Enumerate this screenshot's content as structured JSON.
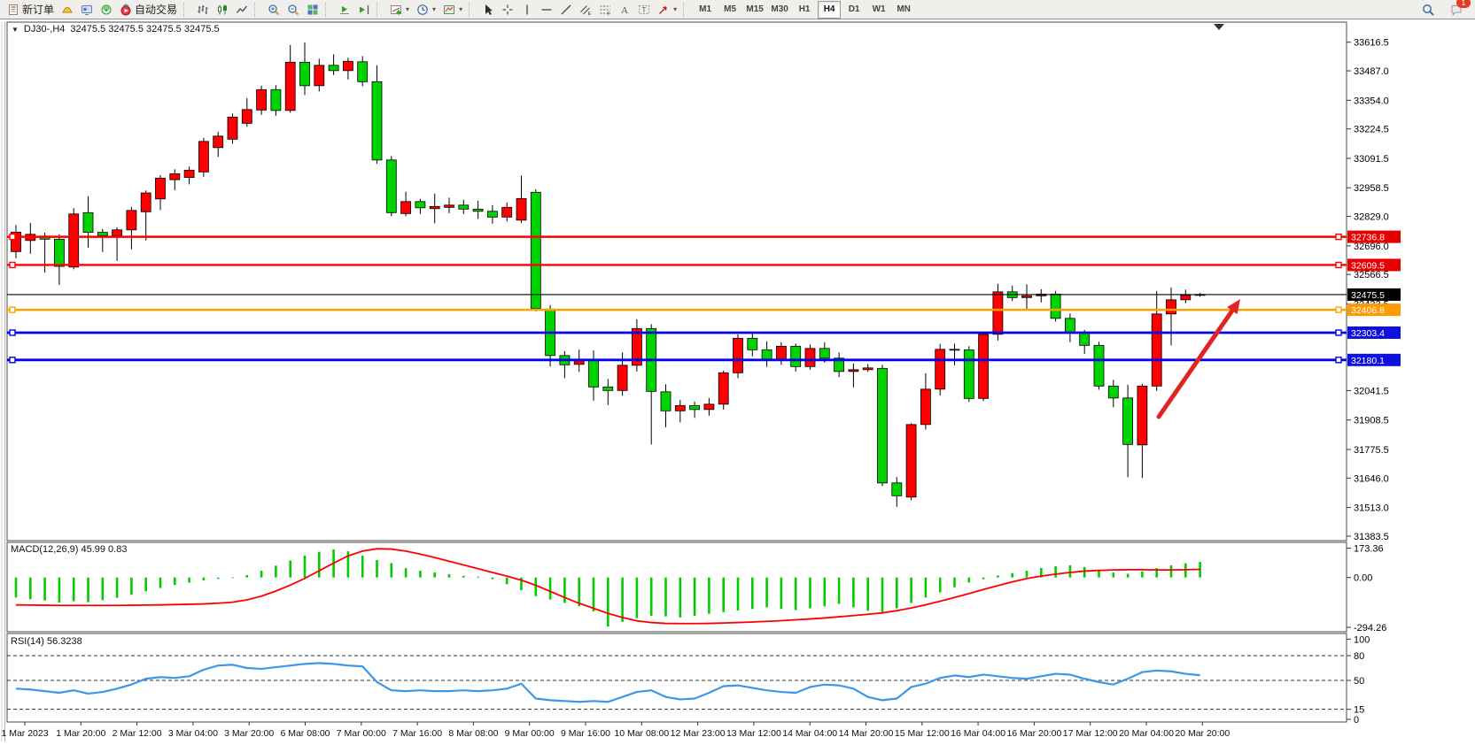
{
  "toolbar": {
    "items": [
      {
        "icon": "new-order-icon",
        "label": "新订单"
      },
      {
        "icon": "gold-icon"
      },
      {
        "icon": "market-watch-icon"
      },
      {
        "icon": "navigator-icon"
      },
      {
        "icon": "auto-trading-icon",
        "label": "自动交易"
      },
      {
        "sep": true
      },
      {
        "icon": "bar-chart-icon"
      },
      {
        "icon": "candlestick-icon"
      },
      {
        "icon": "line-chart-icon"
      },
      {
        "sep": true
      },
      {
        "icon": "zoom-in-icon"
      },
      {
        "icon": "zoom-out-icon"
      },
      {
        "icon": "tile-windows-icon"
      },
      {
        "sep": true
      },
      {
        "icon": "auto-scroll-icon"
      },
      {
        "icon": "chart-shift-icon"
      },
      {
        "sep": true
      },
      {
        "icon": "indicators-icon",
        "dropdown": true
      },
      {
        "icon": "period-icon",
        "dropdown": true
      },
      {
        "icon": "template-icon",
        "dropdown": true
      },
      {
        "sep": true
      },
      {
        "icon": "cursor-icon"
      },
      {
        "icon": "crosshair-icon"
      },
      {
        "icon": "vertical-line-icon"
      },
      {
        "icon": "horizontal-line-icon"
      },
      {
        "icon": "trendline-icon"
      },
      {
        "icon": "channel-icon"
      },
      {
        "icon": "fibonacci-icon"
      },
      {
        "icon": "text-icon"
      },
      {
        "icon": "text-label-icon"
      },
      {
        "icon": "shapes-icon",
        "dropdown": true
      },
      {
        "sep": true
      }
    ],
    "timeframes": [
      {
        "label": "M1"
      },
      {
        "label": "M5"
      },
      {
        "label": "M15"
      },
      {
        "label": "M30"
      },
      {
        "label": "H1"
      },
      {
        "label": "H4"
      },
      {
        "label": "D1"
      },
      {
        "label": "W1"
      },
      {
        "label": "MN"
      }
    ],
    "active_timeframe": "H4",
    "notification_badge": "1"
  },
  "chart_header": {
    "symbol_period": "DJ30-,H4",
    "ohlc": "32475.5 32475.5 32475.5 32475.5"
  },
  "indicators": {
    "macd_label": "MACD(12,26,9) 45.99 0.83",
    "rsi_label": "RSI(14) 56.3238"
  },
  "chart_data": {
    "type": "candlestick",
    "symbol": "DJ30-",
    "timeframe": "H4",
    "ylim": [
      31383.5,
      33616.5
    ],
    "up_color": "#fe0000",
    "down_color": "#00d400",
    "wick_color": "#000000",
    "price_axis_labels": [
      "33616.5",
      "33487.0",
      "33354.0",
      "33224.5",
      "33091.5",
      "32958.5",
      "32829.0",
      "32696.0",
      "32566.5",
      "32433.5",
      "32041.5",
      "31908.5",
      "31775.5",
      "31646.0",
      "31513.0",
      "31383.5"
    ],
    "hlines": [
      {
        "price": 32736.8,
        "label": "32736.8",
        "color": "#ff0000",
        "badge": "#e60000",
        "width": 2.4,
        "handle": true
      },
      {
        "price": 32609.5,
        "label": "32609.5",
        "color": "#ff0000",
        "badge": "#e60000",
        "width": 2.4,
        "handle": true
      },
      {
        "price": 32475.5,
        "label": "32475.5",
        "color": "#000000",
        "badge": "#000000",
        "width": 1.2,
        "handle": false
      },
      {
        "price": 32406.8,
        "label": "32406.8",
        "color": "#ffa200",
        "badge": "#ff9a00",
        "width": 2.6,
        "handle": true
      },
      {
        "price": 32303.4,
        "label": "32303.4",
        "color": "#0000ee",
        "badge": "#1010dd",
        "width": 2.8,
        "handle": true
      },
      {
        "price": 32180.1,
        "label": "32180.1",
        "color": "#0000ee",
        "badge": "#1010dd",
        "width": 2.8,
        "handle": true
      }
    ],
    "current_price": "32475.5",
    "candles": [
      [
        32670,
        32790,
        32640,
        32758
      ],
      [
        32720,
        32800,
        32660,
        32748
      ],
      [
        32740,
        32756,
        32575,
        32726
      ],
      [
        32726,
        32748,
        32520,
        32603
      ],
      [
        32600,
        32866,
        32590,
        32840
      ],
      [
        32846,
        32920,
        32688,
        32757
      ],
      [
        32757,
        32772,
        32668,
        32742
      ],
      [
        32742,
        32780,
        32628,
        32768
      ],
      [
        32768,
        32872,
        32680,
        32856
      ],
      [
        32850,
        32946,
        32720,
        32935
      ],
      [
        32908,
        33016,
        32858,
        33002
      ],
      [
        32995,
        33042,
        32948,
        33022
      ],
      [
        33005,
        33054,
        32974,
        33038
      ],
      [
        33030,
        33184,
        33008,
        33168
      ],
      [
        33140,
        33212,
        33098,
        33192
      ],
      [
        33178,
        33294,
        33158,
        33278
      ],
      [
        33250,
        33364,
        33234,
        33312
      ],
      [
        33310,
        33420,
        33288,
        33402
      ],
      [
        33402,
        33422,
        33284,
        33308
      ],
      [
        33308,
        33604,
        33298,
        33526
      ],
      [
        33526,
        33616,
        33378,
        33420
      ],
      [
        33420,
        33542,
        33394,
        33512
      ],
      [
        33512,
        33562,
        33468,
        33488
      ],
      [
        33488,
        33546,
        33448,
        33530
      ],
      [
        33528,
        33554,
        33418,
        33438
      ],
      [
        33438,
        33512,
        33068,
        33084
      ],
      [
        33084,
        33102,
        32830,
        32846
      ],
      [
        32842,
        32940,
        32830,
        32896
      ],
      [
        32896,
        32908,
        32840,
        32868
      ],
      [
        32864,
        32932,
        32798,
        32874
      ],
      [
        32870,
        32914,
        32844,
        32880
      ],
      [
        32880,
        32904,
        32840,
        32862
      ],
      [
        32862,
        32900,
        32818,
        32852
      ],
      [
        32852,
        32880,
        32796,
        32826
      ],
      [
        32826,
        32892,
        32806,
        32870
      ],
      [
        32812,
        33014,
        32800,
        32910
      ],
      [
        32938,
        32952,
        32400,
        32412
      ],
      [
        32410,
        32428,
        32150,
        32200
      ],
      [
        32200,
        32220,
        32098,
        32158
      ],
      [
        32160,
        32226,
        32126,
        32182
      ],
      [
        32182,
        32224,
        31996,
        32058
      ],
      [
        32058,
        32094,
        31976,
        32042
      ],
      [
        32042,
        32214,
        32018,
        32156
      ],
      [
        32156,
        32364,
        32128,
        32322
      ],
      [
        32322,
        32342,
        31798,
        32038
      ],
      [
        32036,
        32070,
        31876,
        31950
      ],
      [
        31950,
        32000,
        31898,
        31974
      ],
      [
        31974,
        31992,
        31918,
        31956
      ],
      [
        31956,
        32008,
        31928,
        31980
      ],
      [
        31980,
        32132,
        31956,
        32122
      ],
      [
        32122,
        32296,
        32098,
        32278
      ],
      [
        32278,
        32304,
        32196,
        32226
      ],
      [
        32226,
        32264,
        32148,
        32180
      ],
      [
        32180,
        32260,
        32158,
        32242
      ],
      [
        32242,
        32254,
        32128,
        32150
      ],
      [
        32150,
        32250,
        32136,
        32232
      ],
      [
        32232,
        32260,
        32168,
        32188
      ],
      [
        32188,
        32214,
        32102,
        32128
      ],
      [
        32128,
        32164,
        32056,
        32136
      ],
      [
        32136,
        32162,
        32126,
        32144
      ],
      [
        32142,
        32158,
        31610,
        31624
      ],
      [
        31624,
        31650,
        31516,
        31566
      ],
      [
        31560,
        31894,
        31546,
        31888
      ],
      [
        31888,
        32120,
        31866,
        32048
      ],
      [
        32048,
        32252,
        32020,
        32228
      ],
      [
        32228,
        32254,
        32156,
        32226
      ],
      [
        32226,
        32242,
        31990,
        32006
      ],
      [
        32006,
        32304,
        31994,
        32296
      ],
      [
        32296,
        32524,
        32268,
        32488
      ],
      [
        32488,
        32516,
        32446,
        32462
      ],
      [
        32462,
        32522,
        32406,
        32470
      ],
      [
        32470,
        32500,
        32440,
        32478
      ],
      [
        32478,
        32492,
        32354,
        32368
      ],
      [
        32368,
        32390,
        32260,
        32302
      ],
      [
        32302,
        32316,
        32208,
        32246
      ],
      [
        32246,
        32262,
        32046,
        32062
      ],
      [
        32062,
        32090,
        31966,
        32008
      ],
      [
        32008,
        32068,
        31650,
        31798
      ],
      [
        31796,
        32072,
        31646,
        32062
      ],
      [
        32062,
        32492,
        32040,
        32388
      ],
      [
        32388,
        32508,
        32246,
        32452
      ],
      [
        32452,
        32498,
        32436,
        32472
      ],
      [
        32476,
        32484,
        32466,
        32476
      ]
    ],
    "macd": {
      "label": "MACD(12,26,9) 45.99 0.83",
      "scale_labels": [
        "173.36",
        "0.00",
        "-294.26"
      ],
      "bar_color": "#00cc00",
      "line_color": "#ff0000",
      "histogram": [
        -118,
        -128,
        -136,
        -148,
        -140,
        -146,
        -134,
        -120,
        -102,
        -82,
        -62,
        -44,
        -30,
        -18,
        -8,
        -4,
        14,
        40,
        70,
        100,
        130,
        152,
        166,
        155,
        129,
        103,
        85,
        55,
        40,
        30,
        20,
        10,
        5,
        -10,
        -40,
        -75,
        -110,
        -130,
        -150,
        -170,
        -200,
        -290,
        -262,
        -240,
        -226,
        -230,
        -236,
        -226,
        -214,
        -204,
        -195,
        -186,
        -176,
        -186,
        -192,
        -182,
        -170,
        -156,
        -176,
        -196,
        -210,
        -182,
        -150,
        -118,
        -88,
        -58,
        -30,
        -10,
        12,
        26,
        40,
        56,
        66,
        72,
        62,
        46,
        30,
        22,
        36,
        56,
        72,
        84,
        92
      ],
      "signal": [
        -162,
        -163,
        -164,
        -165,
        -165,
        -165,
        -165,
        -165,
        -164,
        -163,
        -162,
        -160,
        -158,
        -156,
        -152,
        -146,
        -132,
        -110,
        -80,
        -45,
        -5,
        40,
        85,
        128,
        156,
        170,
        168,
        156,
        138,
        118,
        96,
        74,
        52,
        30,
        8,
        -16,
        -46,
        -82,
        -118,
        -152,
        -182,
        -212,
        -236,
        -256,
        -266,
        -271,
        -272,
        -272,
        -271,
        -269,
        -266,
        -263,
        -259,
        -255,
        -250,
        -245,
        -239,
        -232,
        -225,
        -217,
        -209,
        -196,
        -180,
        -161,
        -140,
        -118,
        -95,
        -71,
        -48,
        -26,
        -6,
        8,
        20,
        30,
        38,
        42,
        45,
        46,
        46,
        45,
        45,
        46,
        48
      ]
    },
    "rsi": {
      "label": "RSI(14) 56.3238",
      "scale_labels": [
        "100",
        "80",
        "50",
        "15",
        "0"
      ],
      "levels": [
        80,
        50,
        15
      ],
      "line_color": "#3d97e8",
      "values": [
        40,
        39,
        37,
        35,
        38,
        34,
        36,
        40,
        45,
        52,
        54,
        53,
        55,
        63,
        68,
        69,
        65,
        64,
        66,
        68,
        70,
        71,
        70,
        68,
        67,
        48,
        38,
        37,
        38,
        37,
        37,
        38,
        37,
        38,
        40,
        46,
        28,
        26,
        25,
        24,
        25,
        24,
        30,
        36,
        38,
        30,
        27,
        28,
        35,
        43,
        44,
        41,
        38,
        36,
        35,
        42,
        45,
        44,
        40,
        30,
        26,
        28,
        42,
        46,
        53,
        56,
        54,
        57,
        55,
        53,
        52,
        55,
        58,
        57,
        52,
        48,
        45,
        52,
        60,
        62,
        61,
        58,
        56.3
      ]
    },
    "x_labels": [
      "1 Mar 2023",
      "1 Mar 20:00",
      "2 Mar 12:00",
      "3 Mar 04:00",
      "3 Mar 20:00",
      "6 Mar 08:00",
      "7 Mar 00:00",
      "7 Mar 16:00",
      "8 Mar 08:00",
      "9 Mar 00:00",
      "9 Mar 16:00",
      "10 Mar 08:00",
      "12 Mar 23:00",
      "13 Mar 12:00",
      "14 Mar 04:00",
      "14 Mar 20:00",
      "15 Mar 12:00",
      "16 Mar 04:00",
      "16 Mar 20:00",
      "17 Mar 12:00",
      "20 Mar 04:00",
      "20 Mar 20:00"
    ],
    "arrow": {
      "from": [
        1308,
        449
      ],
      "to": [
        1400,
        316
      ],
      "color": "#e02424"
    },
    "shift_marker": {
      "x": 1376,
      "y": 5
    }
  }
}
